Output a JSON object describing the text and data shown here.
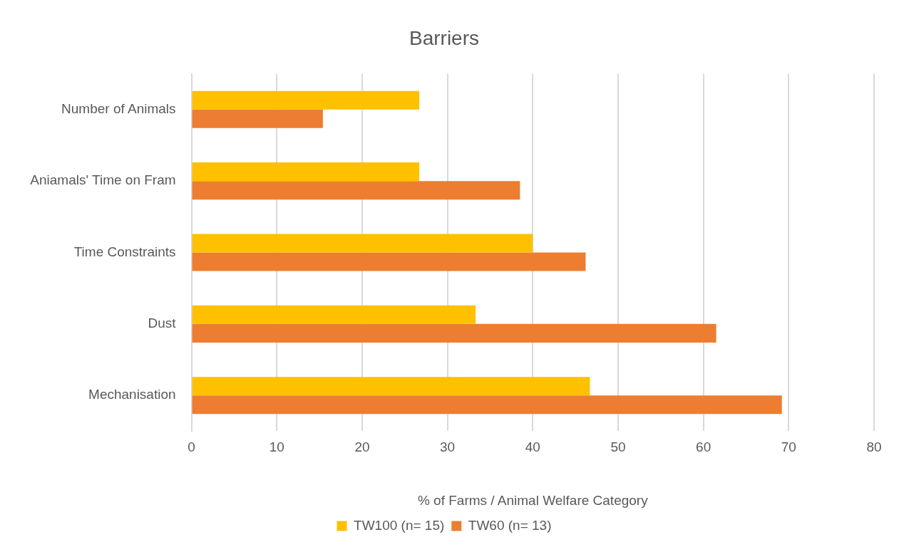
{
  "chart_data": {
    "type": "bar",
    "orientation": "horizontal",
    "title": "Barriers",
    "xlabel": "% of Farms / Animal Welfare Category",
    "categories": [
      "Number of Animals",
      "Aniamals' Time on Fram",
      "Time Constraints",
      "Dust",
      "Mechanisation"
    ],
    "series": [
      {
        "name": "TW100 (n= 15)",
        "color": "#ffc000",
        "values": [
          26.7,
          26.7,
          40,
          33.3,
          46.7
        ]
      },
      {
        "name": "TW60 (n= 13)",
        "color": "#ed7d31",
        "values": [
          15.4,
          38.5,
          46.2,
          61.5,
          69.2
        ]
      }
    ],
    "xlim": [
      0,
      80
    ],
    "xticks": [
      0,
      10,
      20,
      30,
      40,
      50,
      60,
      70,
      80
    ],
    "grid": "x",
    "legend": "bottom"
  }
}
